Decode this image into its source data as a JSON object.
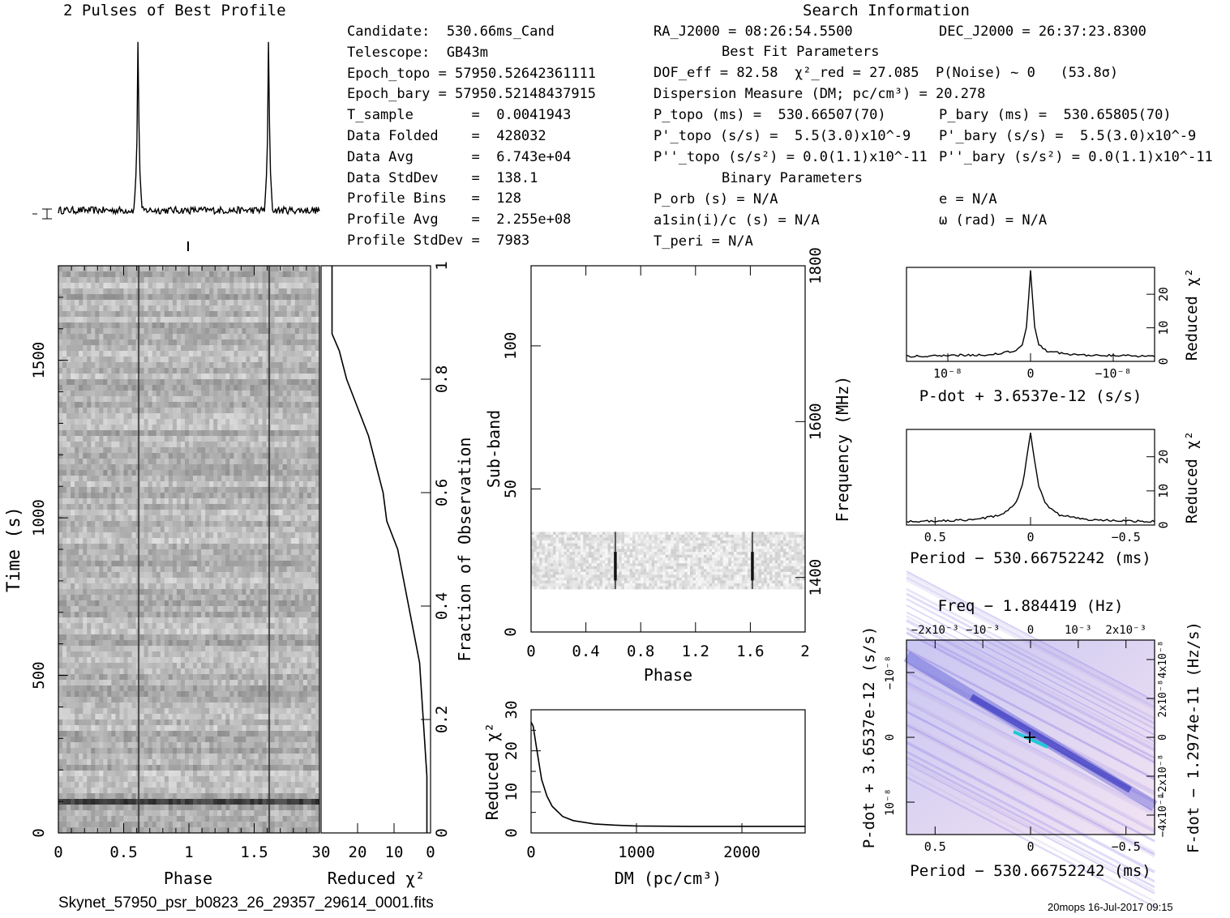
{
  "titles": {
    "pulses": "2 Pulses of Best Profile",
    "search": "Search Information",
    "best_fit": "Best Fit Parameters",
    "binary": "Binary Parameters"
  },
  "col1": [
    "Candidate:  530.66ms_Cand",
    "Telescope:  GB43m",
    "Epoch_topo = 57950.52642361111",
    "Epoch_bary = 57950.52148437915",
    "T_sample       =  0.0041943",
    "Data Folded    =  428032",
    "Data Avg       =  6.743e+04",
    "Data StdDev    =  138.1",
    "Profile Bins   =  128",
    "Profile Avg    =  2.255e+08",
    "Profile StdDev =  7983"
  ],
  "col2": {
    "ra": "RA_J2000 = 08:26:54.5500",
    "dec": "DEC_J2000 = 26:37:23.8300",
    "dof_line": "DOF_eff = 82.58  χ²_red = 27.085  P(Noise) ~ 0   (53.8σ)",
    "dm_line": "Dispersion Measure (DM; pc/cm³) = 20.278",
    "ptopo": "P_topo (ms) =  530.66507(70)",
    "pbary": "P_bary (ms) =  530.65805(70)",
    "pdtopo": "P'_topo (s/s) =  5.5(3.0)x10^-9",
    "pdbary": "P'_bary (s/s) =  5.5(3.0)x10^-9",
    "pddtopo": "P''_topo (s/s²) = 0.0(1.1)x10^-11",
    "pddbary": "P''_bary (s/s²) = 0.0(1.1)x10^-11",
    "porb": "P_orb (s) = N/A",
    "e": "e = N/A",
    "a1": "a1sin(i)/c (s) = N/A",
    "omega": "ω (rad) = N/A",
    "tperi": "T_peri = N/A"
  },
  "footer": {
    "filename": "Skynet_57950_psr_b0823_26_29357_29614_0001.fits",
    "stamp": "20mops 16-Jul-2017 09:15"
  },
  "chart_data": [
    {
      "type": "line",
      "name": "profile",
      "title": "2 Pulses of Best Profile",
      "x": [
        0,
        0.58,
        0.6,
        0.61,
        0.62,
        0.64,
        1.58,
        1.6,
        1.61,
        1.62,
        1.64,
        2
      ],
      "y": [
        0.02,
        0.02,
        0.3,
        1.0,
        0.3,
        0.02,
        0.02,
        0.3,
        1.0,
        0.3,
        0.02,
        0.02
      ],
      "xlim": [
        0,
        2
      ],
      "ylim": [
        0,
        1
      ]
    },
    {
      "type": "heatmap",
      "name": "time-phase",
      "xlabel": "Phase",
      "ylabel": "Time (s)",
      "xticks": [
        "0",
        "0.5",
        "1",
        "1.5"
      ],
      "yticks": [
        "0",
        "500",
        "1000",
        "1500"
      ],
      "xlim": [
        0,
        2
      ],
      "ylim": [
        0,
        1800
      ],
      "pulse_phases": [
        0.615,
        1.615
      ],
      "bright_row_time": 100
    },
    {
      "type": "line",
      "name": "reduced-chi2-vs-fraction",
      "xlabel": "Reduced χ²",
      "ylabel": "Fraction of Observation",
      "xticks": [
        "30",
        "20",
        "10",
        "0"
      ],
      "yticks": [
        "0",
        "0.2",
        "0.4",
        "0.6",
        "0.8",
        "1"
      ],
      "xlim": [
        30,
        0
      ],
      "ylim": [
        0,
        1
      ],
      "x": [
        1,
        1,
        2,
        3,
        6,
        9,
        12,
        13,
        15,
        17,
        20,
        23,
        25,
        27,
        27,
        27,
        27
      ],
      "y": [
        0.0,
        0.1,
        0.2,
        0.3,
        0.4,
        0.5,
        0.55,
        0.6,
        0.65,
        0.7,
        0.75,
        0.8,
        0.85,
        0.88,
        0.9,
        0.95,
        1.0
      ]
    },
    {
      "type": "heatmap",
      "name": "subband-phase",
      "xlabel": "Phase",
      "ylabel": "Sub-band",
      "y2label": "Frequency (MHz)",
      "xticks": [
        "0",
        "0.4",
        "0.8",
        "1.2",
        "1.6",
        "2"
      ],
      "yticks": [
        "0",
        "50",
        "100"
      ],
      "y2ticks": [
        "1400",
        "1600",
        "1800"
      ],
      "xlim": [
        0,
        2
      ],
      "ylim": [
        0,
        128
      ],
      "band_range": [
        15,
        35
      ],
      "pulse_phases": [
        0.615,
        1.615
      ]
    },
    {
      "type": "line",
      "name": "dm-chi2",
      "xlabel": "DM (pc/cm³)",
      "ylabel": "Reduced χ²",
      "xticks": [
        "0",
        "1000",
        "2000"
      ],
      "yticks": [
        "0",
        "5",
        "10",
        "15",
        "20",
        "25",
        "30"
      ],
      "xlim": [
        0,
        2600
      ],
      "ylim": [
        0,
        30
      ],
      "x": [
        0,
        20,
        50,
        100,
        150,
        200,
        300,
        400,
        600,
        800,
        1000,
        1500,
        2000,
        2600
      ],
      "y": [
        27,
        26,
        21,
        13,
        9,
        6.5,
        4,
        3,
        2.2,
        1.9,
        1.7,
        1.6,
        1.6,
        1.6
      ]
    },
    {
      "type": "line",
      "name": "pdot-chi2",
      "xlabel": "P-dot + 3.6537e-12 (s/s)",
      "ylabel": "Reduced χ²",
      "xticks": [
        "10⁻⁸",
        "0",
        "−10⁻⁸"
      ],
      "yticks": [
        "0",
        "10",
        "20"
      ],
      "xlim": [
        1.5,
        -1.5
      ],
      "ylim": [
        0,
        28
      ],
      "x": [
        1.5,
        0.5,
        0.2,
        0.1,
        0.05,
        0,
        -0.05,
        -0.1,
        -0.2,
        -0.5,
        -1.5
      ],
      "y": [
        1.5,
        2,
        3,
        5,
        10,
        27,
        10,
        5,
        3,
        2,
        1.5
      ]
    },
    {
      "type": "line",
      "name": "period-chi2",
      "xlabel": "Period − 530.66752242 (ms)",
      "ylabel": "Reduced χ²",
      "xticks": [
        "0.5",
        "0",
        "−0.5"
      ],
      "yticks": [
        "0",
        "10",
        "20"
      ],
      "xlim": [
        0.65,
        -0.65
      ],
      "ylim": [
        0,
        28
      ],
      "x": [
        0.65,
        0.3,
        0.15,
        0.08,
        0.04,
        0,
        -0.04,
        -0.08,
        -0.15,
        -0.3,
        -0.65
      ],
      "y": [
        1,
        1.5,
        3,
        6,
        12,
        27,
        12,
        6,
        3,
        1.5,
        1
      ]
    },
    {
      "type": "heatmap",
      "name": "period-pdot",
      "title": "Freq − 1.884419 (Hz)",
      "xlabel": "Period − 530.66752242 (ms)",
      "ylabel": "P-dot + 3.6537e-12 (s/s)",
      "y2label": "F-dot − 1.2974e-11 (Hz/s)",
      "xticks": [
        "0.5",
        "0",
        "−0.5"
      ],
      "x2ticks": [
        "−2x10⁻³",
        "−10⁻³",
        "0",
        "10⁻³",
        "2x10⁻³"
      ],
      "yticks": [
        "10⁻⁸",
        "0",
        "−10⁻⁸"
      ],
      "y2ticks": [
        "−4x10⁻⁸",
        "−2x10⁻⁸",
        "0",
        "2x10⁻⁸",
        "4x10⁻⁸"
      ]
    }
  ]
}
